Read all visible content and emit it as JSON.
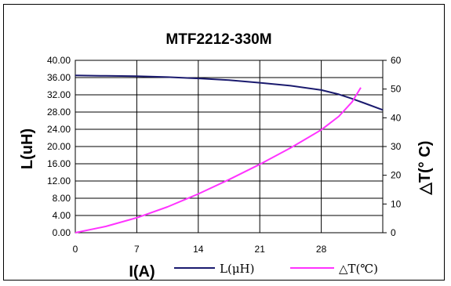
{
  "chart_data": {
    "type": "line",
    "title": "MTF2212-330M",
    "xlabel": "I(A)",
    "ylabel_left": "L(uH)",
    "ylabel_right": "△T(° C)",
    "x_ticks": [
      "0",
      "7",
      "14",
      "21",
      "28"
    ],
    "y_left_ticks": [
      "0.00",
      "4.00",
      "8.00",
      "12.00",
      "16.00",
      "20.00",
      "24.00",
      "28.00",
      "32.00",
      "36.00",
      "40.00"
    ],
    "y_right_ticks": [
      "0",
      "10",
      "20",
      "30",
      "40",
      "50",
      "60"
    ],
    "xlim": [
      0,
      35
    ],
    "ylim_left": [
      0,
      40
    ],
    "ylim_right": [
      0,
      60
    ],
    "grid": true,
    "legend_position": "bottom",
    "series": [
      {
        "name": "L(μH)",
        "axis": "left",
        "color": "#1a1a6e",
        "x": [
          0,
          3.5,
          7,
          10.5,
          14,
          17.5,
          21,
          24.5,
          28,
          30,
          31.5,
          33,
          35
        ],
        "y": [
          36.5,
          36.4,
          36.3,
          36.1,
          35.8,
          35.4,
          34.8,
          34.1,
          33.1,
          32.1,
          31.1,
          30.0,
          28.5
        ]
      },
      {
        "name": "△T(℃)",
        "axis": "right",
        "color": "#ff33ff",
        "x": [
          0,
          3.5,
          7,
          10.5,
          14,
          17.5,
          21,
          24.5,
          28,
          30,
          31.5,
          32.5
        ],
        "y": [
          0,
          2.2,
          5.2,
          9.0,
          13.5,
          18.5,
          23.8,
          29.5,
          35.8,
          40.5,
          45.5,
          50.5
        ]
      }
    ]
  }
}
